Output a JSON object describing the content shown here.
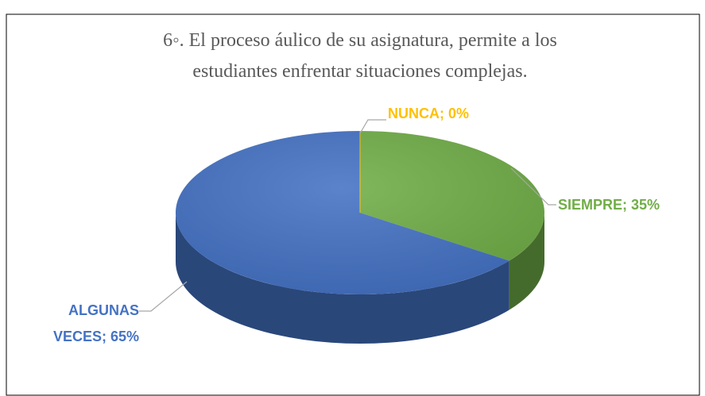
{
  "chart_data": {
    "type": "pie",
    "title": [
      "6◦. El proceso áulico de su asignatura, permite a los",
      "estudiantes enfrentar situaciones complejas."
    ],
    "values": [
      35,
      65,
      0
    ],
    "value_labels": [
      "SIEMPRE; 35%",
      "ALGUNAS VECES; 65%",
      "NUNCA; 0%"
    ],
    "colors": [
      "#70ad47",
      "#4472c4",
      "#ffc000"
    ]
  }
}
